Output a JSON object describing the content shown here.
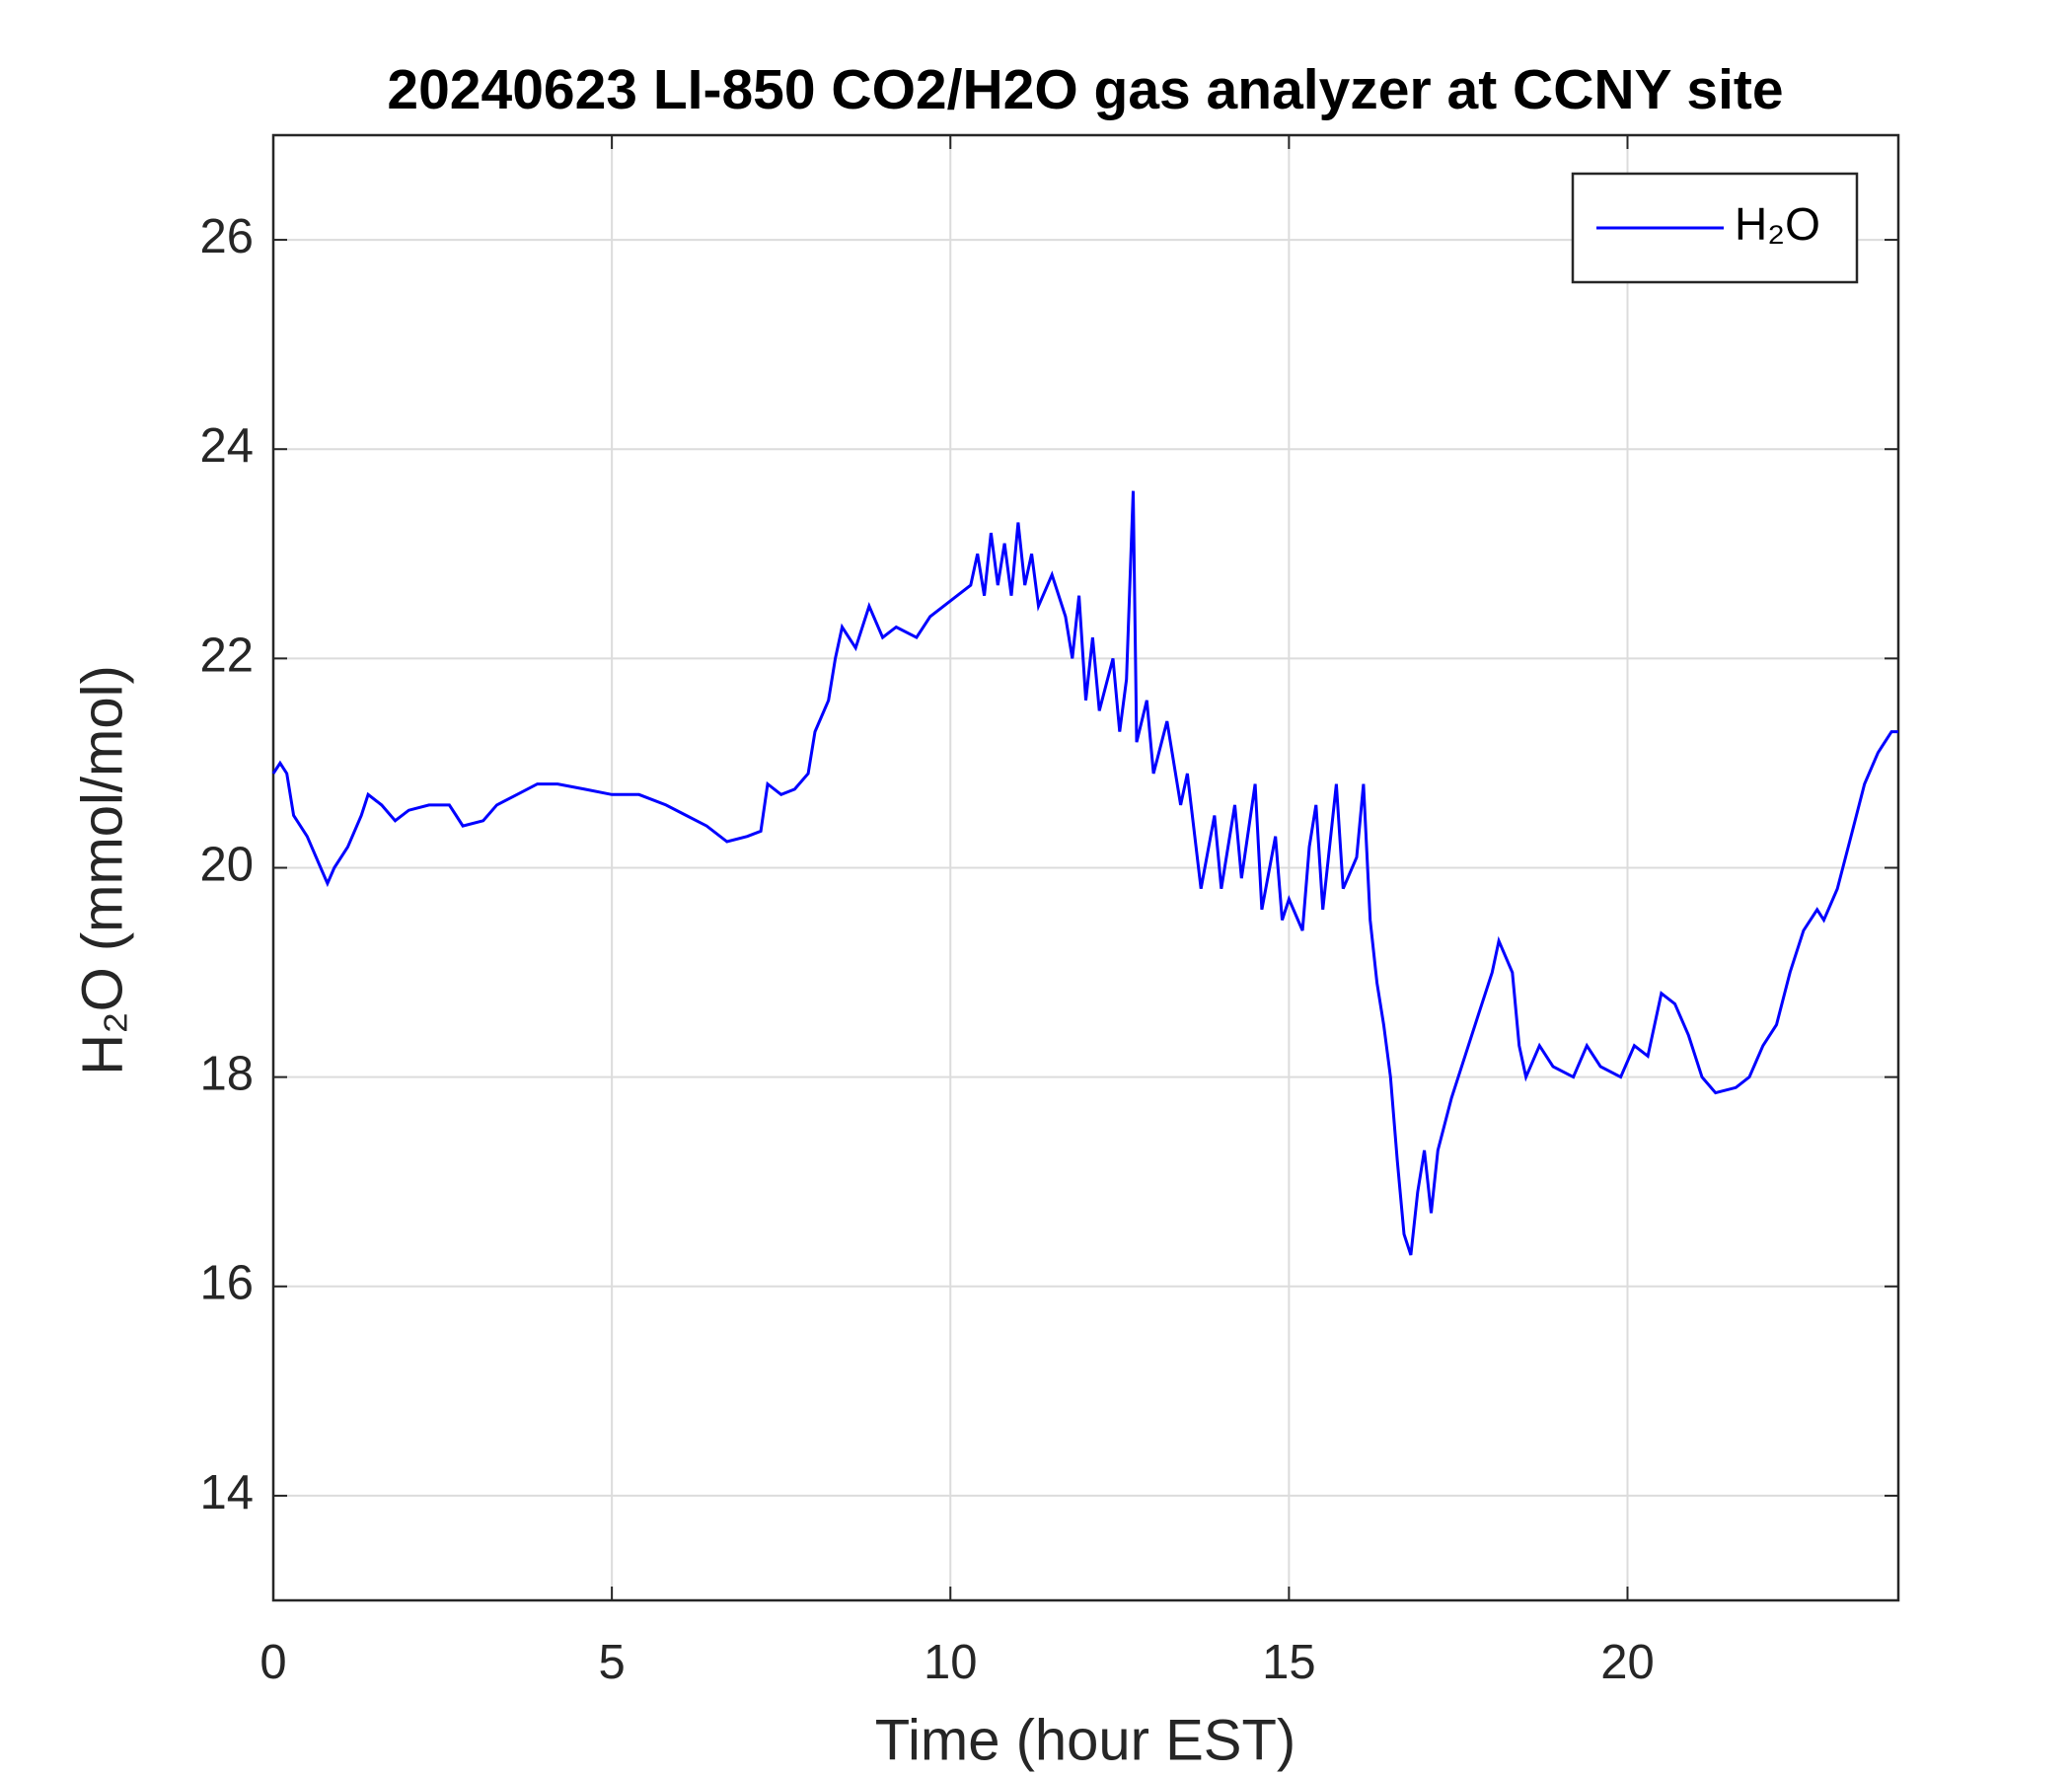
{
  "chart_data": {
    "type": "line",
    "title": "20240623 LI-850 CO2/H2O gas analyzer at CCNY site",
    "x_label": "Time (hour EST)",
    "y_label": "H₂O (mmol/mol)",
    "x": [
      0,
      0.1,
      0.2,
      0.3,
      0.5,
      0.7,
      0.8,
      0.9,
      1.1,
      1.3,
      1.4,
      1.6,
      1.8,
      2.0,
      2.3,
      2.6,
      2.7,
      2.8,
      3.1,
      3.3,
      3.6,
      3.9,
      4.2,
      4.6,
      5.0,
      5.4,
      5.8,
      6.1,
      6.4,
      6.7,
      7.0,
      7.2,
      7.3,
      7.5,
      7.7,
      7.9,
      8.0,
      8.2,
      8.3,
      8.4,
      8.6,
      8.8,
      9.0,
      9.2,
      9.5,
      9.7,
      9.9,
      10.1,
      10.3,
      10.4,
      10.5,
      10.6,
      10.7,
      10.8,
      10.9,
      11.0,
      11.1,
      11.2,
      11.3,
      11.5,
      11.7,
      11.8,
      11.9,
      12.0,
      12.1,
      12.2,
      12.4,
      12.5,
      12.6,
      12.7,
      12.75,
      12.9,
      13.0,
      13.2,
      13.4,
      13.5,
      13.7,
      13.9,
      14.0,
      14.2,
      14.3,
      14.5,
      14.6,
      14.8,
      14.9,
      15.0,
      15.2,
      15.3,
      15.4,
      15.5,
      15.7,
      15.8,
      16.0,
      16.1,
      16.2,
      16.3,
      16.4,
      16.5,
      16.6,
      16.7,
      16.8,
      16.9,
      17.0,
      17.1,
      17.2,
      17.4,
      17.6,
      17.8,
      18.0,
      18.1,
      18.3,
      18.4,
      18.5,
      18.7,
      18.9,
      19.2,
      19.4,
      19.6,
      19.9,
      20.1,
      20.3,
      20.5,
      20.7,
      20.9,
      21.1,
      21.3,
      21.6,
      21.8,
      22.0,
      22.2,
      22.4,
      22.6,
      22.8,
      22.9,
      23.1,
      23.3,
      23.5,
      23.7,
      23.9,
      24.0
    ],
    "series": [
      {
        "name": "H₂O",
        "color": "#0000ff",
        "values": [
          20.9,
          21.0,
          20.9,
          20.5,
          20.3,
          20.0,
          19.85,
          20.0,
          20.2,
          20.5,
          20.7,
          20.6,
          20.45,
          20.55,
          20.6,
          20.6,
          20.5,
          20.4,
          20.45,
          20.6,
          20.7,
          20.8,
          20.8,
          20.75,
          20.7,
          20.7,
          20.6,
          20.5,
          20.4,
          20.25,
          20.3,
          20.35,
          20.8,
          20.7,
          20.75,
          20.9,
          21.3,
          21.6,
          22.0,
          22.3,
          22.1,
          22.5,
          22.2,
          22.3,
          22.2,
          22.4,
          22.5,
          22.6,
          22.7,
          23.0,
          22.6,
          23.2,
          22.7,
          23.1,
          22.6,
          23.3,
          22.7,
          23.0,
          22.5,
          22.8,
          22.4,
          22.0,
          22.6,
          21.6,
          22.2,
          21.5,
          22.0,
          21.3,
          21.8,
          23.6,
          21.2,
          21.6,
          20.9,
          21.4,
          20.6,
          20.9,
          19.8,
          20.5,
          19.8,
          20.6,
          19.9,
          20.8,
          19.6,
          20.3,
          19.5,
          19.7,
          19.4,
          20.2,
          20.6,
          19.6,
          20.8,
          19.8,
          20.1,
          20.8,
          19.5,
          18.9,
          18.5,
          18.0,
          17.2,
          16.5,
          16.3,
          16.9,
          17.3,
          16.7,
          17.3,
          17.8,
          18.2,
          18.6,
          19.0,
          19.3,
          19.0,
          18.3,
          18.0,
          18.3,
          18.1,
          18.0,
          18.3,
          18.1,
          18.0,
          18.3,
          18.2,
          18.8,
          18.7,
          18.4,
          18.0,
          17.85,
          17.9,
          18.0,
          18.3,
          18.5,
          19.0,
          19.4,
          19.6,
          19.5,
          19.8,
          20.3,
          20.8,
          21.1,
          21.3,
          21.3
        ]
      }
    ],
    "xlim": [
      0,
      24
    ],
    "xticks": [
      0,
      5,
      10,
      15,
      20
    ],
    "ylim": [
      13,
      27
    ],
    "yticks": [
      14,
      16,
      18,
      20,
      22,
      24,
      26
    ],
    "grid": true,
    "legend_loc": "upper right"
  }
}
